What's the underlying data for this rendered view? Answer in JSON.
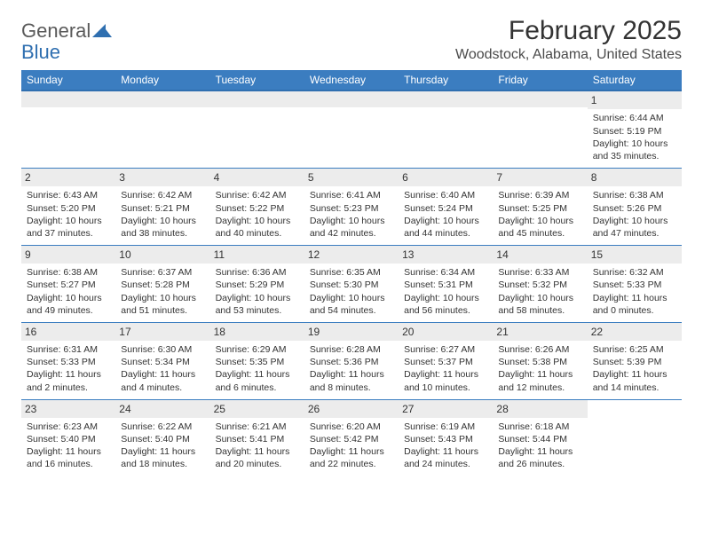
{
  "logo": {
    "text1": "General",
    "text2": "Blue",
    "shape_color": "#2f6fb0"
  },
  "title": {
    "month": "February 2025",
    "location": "Woodstock, Alabama, United States",
    "title_fontsize": 30,
    "location_fontsize": 16
  },
  "colors": {
    "header_bg": "#3b7dc0",
    "header_underline": "#2f6fb0",
    "daynum_bg": "#ececec",
    "text": "#333333",
    "background": "#ffffff",
    "row_divider": "#3b7dc0"
  },
  "typography": {
    "body_fontsize": 10.5,
    "daynum_fontsize": 12,
    "header_fontsize": 12,
    "font_family": "Arial"
  },
  "layout": {
    "columns": 7,
    "rows": 5,
    "col_width_pct": 14.28
  },
  "day_headers": [
    "Sunday",
    "Monday",
    "Tuesday",
    "Wednesday",
    "Thursday",
    "Friday",
    "Saturday"
  ],
  "weeks": [
    [
      {
        "day": "",
        "sunrise": "",
        "sunset": "",
        "daylight": ""
      },
      {
        "day": "",
        "sunrise": "",
        "sunset": "",
        "daylight": ""
      },
      {
        "day": "",
        "sunrise": "",
        "sunset": "",
        "daylight": ""
      },
      {
        "day": "",
        "sunrise": "",
        "sunset": "",
        "daylight": ""
      },
      {
        "day": "",
        "sunrise": "",
        "sunset": "",
        "daylight": ""
      },
      {
        "day": "",
        "sunrise": "",
        "sunset": "",
        "daylight": ""
      },
      {
        "day": "1",
        "sunrise": "Sunrise: 6:44 AM",
        "sunset": "Sunset: 5:19 PM",
        "daylight": "Daylight: 10 hours and 35 minutes."
      }
    ],
    [
      {
        "day": "2",
        "sunrise": "Sunrise: 6:43 AM",
        "sunset": "Sunset: 5:20 PM",
        "daylight": "Daylight: 10 hours and 37 minutes."
      },
      {
        "day": "3",
        "sunrise": "Sunrise: 6:42 AM",
        "sunset": "Sunset: 5:21 PM",
        "daylight": "Daylight: 10 hours and 38 minutes."
      },
      {
        "day": "4",
        "sunrise": "Sunrise: 6:42 AM",
        "sunset": "Sunset: 5:22 PM",
        "daylight": "Daylight: 10 hours and 40 minutes."
      },
      {
        "day": "5",
        "sunrise": "Sunrise: 6:41 AM",
        "sunset": "Sunset: 5:23 PM",
        "daylight": "Daylight: 10 hours and 42 minutes."
      },
      {
        "day": "6",
        "sunrise": "Sunrise: 6:40 AM",
        "sunset": "Sunset: 5:24 PM",
        "daylight": "Daylight: 10 hours and 44 minutes."
      },
      {
        "day": "7",
        "sunrise": "Sunrise: 6:39 AM",
        "sunset": "Sunset: 5:25 PM",
        "daylight": "Daylight: 10 hours and 45 minutes."
      },
      {
        "day": "8",
        "sunrise": "Sunrise: 6:38 AM",
        "sunset": "Sunset: 5:26 PM",
        "daylight": "Daylight: 10 hours and 47 minutes."
      }
    ],
    [
      {
        "day": "9",
        "sunrise": "Sunrise: 6:38 AM",
        "sunset": "Sunset: 5:27 PM",
        "daylight": "Daylight: 10 hours and 49 minutes."
      },
      {
        "day": "10",
        "sunrise": "Sunrise: 6:37 AM",
        "sunset": "Sunset: 5:28 PM",
        "daylight": "Daylight: 10 hours and 51 minutes."
      },
      {
        "day": "11",
        "sunrise": "Sunrise: 6:36 AM",
        "sunset": "Sunset: 5:29 PM",
        "daylight": "Daylight: 10 hours and 53 minutes."
      },
      {
        "day": "12",
        "sunrise": "Sunrise: 6:35 AM",
        "sunset": "Sunset: 5:30 PM",
        "daylight": "Daylight: 10 hours and 54 minutes."
      },
      {
        "day": "13",
        "sunrise": "Sunrise: 6:34 AM",
        "sunset": "Sunset: 5:31 PM",
        "daylight": "Daylight: 10 hours and 56 minutes."
      },
      {
        "day": "14",
        "sunrise": "Sunrise: 6:33 AM",
        "sunset": "Sunset: 5:32 PM",
        "daylight": "Daylight: 10 hours and 58 minutes."
      },
      {
        "day": "15",
        "sunrise": "Sunrise: 6:32 AM",
        "sunset": "Sunset: 5:33 PM",
        "daylight": "Daylight: 11 hours and 0 minutes."
      }
    ],
    [
      {
        "day": "16",
        "sunrise": "Sunrise: 6:31 AM",
        "sunset": "Sunset: 5:33 PM",
        "daylight": "Daylight: 11 hours and 2 minutes."
      },
      {
        "day": "17",
        "sunrise": "Sunrise: 6:30 AM",
        "sunset": "Sunset: 5:34 PM",
        "daylight": "Daylight: 11 hours and 4 minutes."
      },
      {
        "day": "18",
        "sunrise": "Sunrise: 6:29 AM",
        "sunset": "Sunset: 5:35 PM",
        "daylight": "Daylight: 11 hours and 6 minutes."
      },
      {
        "day": "19",
        "sunrise": "Sunrise: 6:28 AM",
        "sunset": "Sunset: 5:36 PM",
        "daylight": "Daylight: 11 hours and 8 minutes."
      },
      {
        "day": "20",
        "sunrise": "Sunrise: 6:27 AM",
        "sunset": "Sunset: 5:37 PM",
        "daylight": "Daylight: 11 hours and 10 minutes."
      },
      {
        "day": "21",
        "sunrise": "Sunrise: 6:26 AM",
        "sunset": "Sunset: 5:38 PM",
        "daylight": "Daylight: 11 hours and 12 minutes."
      },
      {
        "day": "22",
        "sunrise": "Sunrise: 6:25 AM",
        "sunset": "Sunset: 5:39 PM",
        "daylight": "Daylight: 11 hours and 14 minutes."
      }
    ],
    [
      {
        "day": "23",
        "sunrise": "Sunrise: 6:23 AM",
        "sunset": "Sunset: 5:40 PM",
        "daylight": "Daylight: 11 hours and 16 minutes."
      },
      {
        "day": "24",
        "sunrise": "Sunrise: 6:22 AM",
        "sunset": "Sunset: 5:40 PM",
        "daylight": "Daylight: 11 hours and 18 minutes."
      },
      {
        "day": "25",
        "sunrise": "Sunrise: 6:21 AM",
        "sunset": "Sunset: 5:41 PM",
        "daylight": "Daylight: 11 hours and 20 minutes."
      },
      {
        "day": "26",
        "sunrise": "Sunrise: 6:20 AM",
        "sunset": "Sunset: 5:42 PM",
        "daylight": "Daylight: 11 hours and 22 minutes."
      },
      {
        "day": "27",
        "sunrise": "Sunrise: 6:19 AM",
        "sunset": "Sunset: 5:43 PM",
        "daylight": "Daylight: 11 hours and 24 minutes."
      },
      {
        "day": "28",
        "sunrise": "Sunrise: 6:18 AM",
        "sunset": "Sunset: 5:44 PM",
        "daylight": "Daylight: 11 hours and 26 minutes."
      },
      {
        "day": "",
        "sunrise": "",
        "sunset": "",
        "daylight": ""
      }
    ]
  ]
}
